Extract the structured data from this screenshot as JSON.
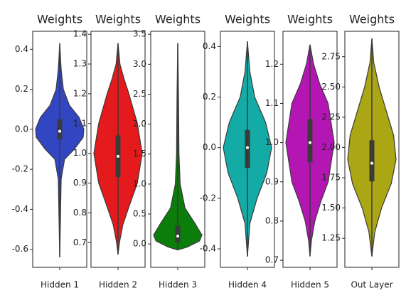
{
  "chart_data": [
    {
      "type": "violin",
      "title": "Weights",
      "categories": [
        "Hidden 1"
      ],
      "color": "#3346c2",
      "ylim": [
        -0.69,
        0.49
      ],
      "yticks": [
        0.4,
        0.2,
        {
          "value": 0,
          "label": "0.0"
        },
        -0.2,
        -0.4,
        -0.6
      ],
      "min": -0.64,
      "q1": -0.05,
      "median": -0.01,
      "q3": 0.05,
      "max": 0.43,
      "density": {
        "y": [
          0.43,
          0.3,
          0.2,
          0.12,
          0.06,
          0.0,
          -0.04,
          -0.1,
          -0.15,
          -0.25,
          -0.45,
          -0.64
        ],
        "width": [
          0,
          0.06,
          0.15,
          0.4,
          0.8,
          1,
          0.97,
          0.6,
          0.2,
          0.06,
          0.03,
          0
        ]
      }
    },
    {
      "type": "violin",
      "title": "Weights",
      "categories": [
        "Hidden 2"
      ],
      "color": "#e41a1c",
      "ylim": [
        0.617,
        1.41
      ],
      "yticks": [
        1.4,
        1.3,
        1.2,
        1.1,
        {
          "value": 1,
          "label": "1.0"
        },
        0.9,
        0.8,
        0.7
      ],
      "min": 0.66,
      "q1": 0.92,
      "median": 0.99,
      "q3": 1.06,
      "max": 1.37,
      "density": {
        "y": [
          1.37,
          1.3,
          1.25,
          1.2,
          1.1,
          1.0,
          0.9,
          0.82,
          0.76,
          0.7,
          0.66
        ],
        "width": [
          0,
          0.08,
          0.25,
          0.45,
          0.8,
          1,
          0.8,
          0.45,
          0.2,
          0.06,
          0
        ]
      }
    },
    {
      "type": "violin",
      "title": "Weights",
      "categories": [
        "Hidden 3"
      ],
      "color": "#0b7d0b",
      "ylim": [
        -0.39,
        3.55
      ],
      "yticks": [
        3.5,
        {
          "value": 3,
          "label": "3.0"
        },
        2.5,
        {
          "value": 2,
          "label": "2.0"
        },
        1.5,
        {
          "value": 1,
          "label": "1.0"
        },
        0.5,
        {
          "value": 0,
          "label": "0.0"
        }
      ],
      "min": -0.1,
      "q1": 0.03,
      "median": 0.13,
      "q3": 0.3,
      "max": 3.35,
      "density": {
        "y": [
          3.35,
          2.5,
          1.5,
          1.0,
          0.6,
          0.35,
          0.15,
          0.05,
          -0.05,
          -0.1
        ],
        "width": [
          0,
          0.03,
          0.05,
          0.1,
          0.3,
          0.7,
          1,
          0.9,
          0.4,
          0
        ]
      }
    },
    {
      "type": "violin",
      "title": "Weights",
      "categories": [
        "Hidden 4"
      ],
      "color": "#14aaa6",
      "ylim": [
        -0.473,
        0.46
      ],
      "yticks": [
        0.4,
        0.2,
        {
          "value": 0,
          "label": "0.0"
        },
        -0.2,
        -0.4
      ],
      "min": -0.43,
      "q1": -0.08,
      "median": 0.0,
      "q3": 0.07,
      "max": 0.42,
      "density": {
        "y": [
          0.42,
          0.3,
          0.2,
          0.1,
          0.0,
          -0.1,
          -0.2,
          -0.3,
          -0.43
        ],
        "width": [
          0,
          0.1,
          0.3,
          0.75,
          1,
          0.8,
          0.4,
          0.1,
          0
        ]
      }
    },
    {
      "type": "violin",
      "title": "Weights",
      "categories": [
        "Hidden 5"
      ],
      "color": "#b316b3",
      "ylim": [
        0.682,
        1.284
      ],
      "yticks": [
        1.2,
        1.1,
        {
          "value": 1,
          "label": "1.0"
        },
        0.9,
        0.8,
        0.7
      ],
      "min": 0.71,
      "q1": 0.95,
      "median": 1.0,
      "q3": 1.06,
      "max": 1.25,
      "density": {
        "y": [
          1.25,
          1.2,
          1.15,
          1.1,
          1.0,
          0.9,
          0.85,
          0.8,
          0.75,
          0.71
        ],
        "width": [
          0,
          0.15,
          0.4,
          0.75,
          1,
          0.75,
          0.45,
          0.2,
          0.06,
          0
        ]
      }
    },
    {
      "type": "violin",
      "title": "Weights",
      "categories": [
        "Out Layer"
      ],
      "color": "#aaa614",
      "ylim": [
        1.01,
        2.96
      ],
      "yticks": [
        2.75,
        {
          "value": 2.5,
          "label": "2.50"
        },
        2.25,
        {
          "value": 2,
          "label": "2.00"
        },
        1.75,
        {
          "value": 1.5,
          "label": "1.50"
        },
        1.25
      ],
      "min": 1.1,
      "q1": 1.72,
      "median": 1.87,
      "q3": 2.06,
      "max": 2.9,
      "density": {
        "y": [
          2.9,
          2.7,
          2.5,
          2.3,
          2.1,
          1.9,
          1.7,
          1.5,
          1.3,
          1.1
        ],
        "width": [
          0,
          0.08,
          0.3,
          0.6,
          0.9,
          1,
          0.8,
          0.4,
          0.12,
          0
        ]
      }
    }
  ]
}
